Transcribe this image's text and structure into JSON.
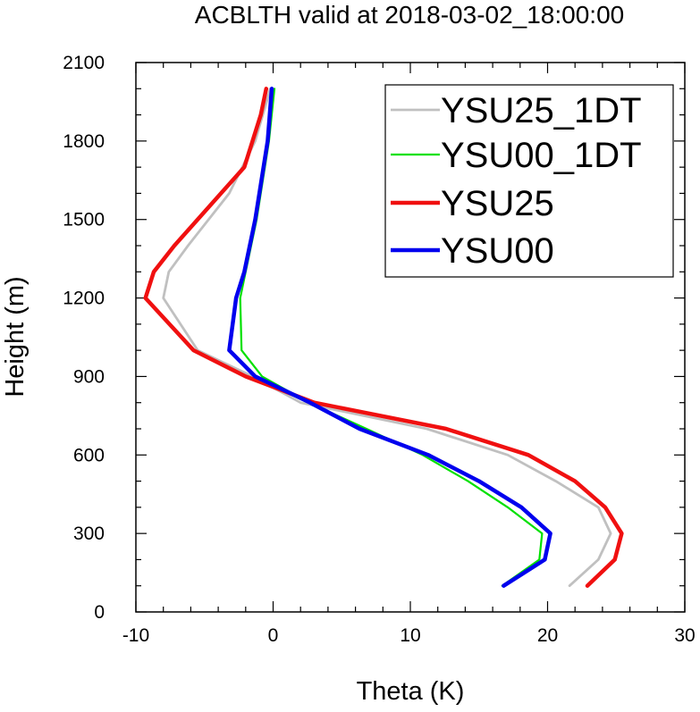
{
  "chart_data": {
    "type": "line",
    "title": "ACBLTH valid at 2018-03-02_18:00:00",
    "xlabel": "Theta (K)",
    "ylabel": "Height (m)",
    "xlim": [
      -10,
      30
    ],
    "ylim": [
      0,
      2100
    ],
    "xticks": [
      "-10",
      "0",
      "10",
      "20",
      "30"
    ],
    "yticks": [
      "0",
      "300",
      "600",
      "900",
      "1200",
      "1500",
      "1800",
      "2100"
    ],
    "grid": false,
    "legend_position": "top-right",
    "series": [
      {
        "name": "YSU25_1DT",
        "color": "#c0c0c0",
        "x": [
          21.6,
          23.7,
          24.6,
          23.7,
          20.6,
          17.1,
          11.2,
          2.0,
          -1.5,
          -5.5,
          -8.0,
          -7.6,
          -6.2,
          -3.2,
          -1.3,
          -0.2
        ],
        "y": [
          100,
          200,
          300,
          400,
          500,
          600,
          700,
          800,
          900,
          1000,
          1200,
          1300,
          1400,
          1600,
          1800,
          2000
        ]
      },
      {
        "name": "YSU00_1DT",
        "color": "#00e000",
        "x": [
          16.7,
          19.4,
          19.6,
          17.1,
          14.2,
          10.9,
          6.8,
          2.6,
          -0.8,
          -2.3,
          -2.4,
          -2.0,
          -1.2,
          -0.3,
          0.1
        ],
        "y": [
          100,
          200,
          300,
          400,
          500,
          600,
          700,
          800,
          900,
          1000,
          1200,
          1300,
          1500,
          1800,
          2000
        ]
      },
      {
        "name": "YSU25",
        "color": "#f01010",
        "x": [
          22.9,
          24.9,
          25.4,
          24.2,
          22.0,
          18.6,
          12.6,
          3.0,
          -2.0,
          -5.8,
          -9.3,
          -8.7,
          -7.2,
          -3.8,
          -2.1,
          -0.9,
          -0.5
        ],
        "y": [
          100,
          200,
          300,
          400,
          500,
          600,
          700,
          800,
          900,
          1000,
          1200,
          1300,
          1400,
          1600,
          1700,
          1900,
          2000
        ]
      },
      {
        "name": "YSU00",
        "color": "#0000ee",
        "x": [
          16.8,
          19.8,
          20.2,
          18.1,
          15.0,
          11.3,
          6.3,
          2.7,
          -1.3,
          -3.2,
          -2.7,
          -2.1,
          -1.3,
          -0.4,
          -0.1
        ],
        "y": [
          100,
          200,
          300,
          400,
          500,
          600,
          700,
          800,
          900,
          1000,
          1200,
          1300,
          1500,
          1800,
          2000
        ]
      }
    ]
  }
}
